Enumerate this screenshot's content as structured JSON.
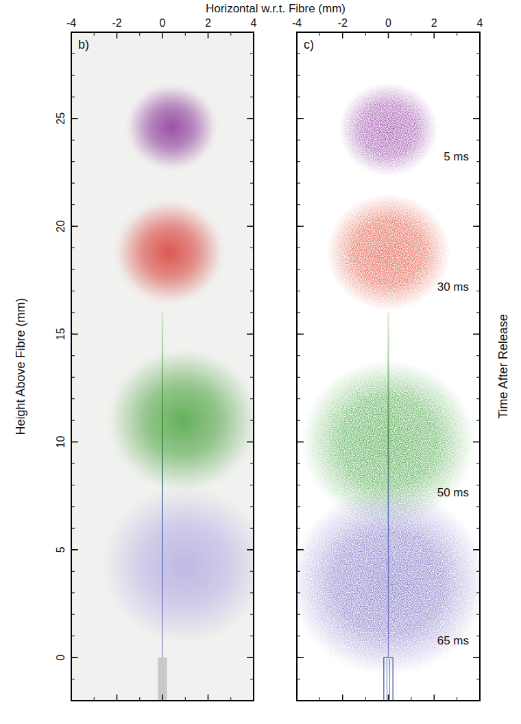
{
  "chart_data": [
    {
      "type": "scatter",
      "label": "b)",
      "marker": "blur",
      "xlabel": "Horizontal w.r.t. Fibre (mm)",
      "ylabel": "Height Above Fibre (mm)",
      "xlim": [
        -4,
        4
      ],
      "xticks": [
        -4,
        -2,
        0,
        2,
        4
      ],
      "ylim": [
        -2,
        29
      ],
      "yticks": [
        0,
        5,
        10,
        15,
        20,
        25
      ],
      "series": [
        {
          "color": "#8e3f9e",
          "x": [
            0.4
          ],
          "values": [
            24.6
          ],
          "sizes": [
            1.5
          ]
        },
        {
          "color": "#d9463f",
          "x": [
            0.3
          ],
          "values": [
            18.8
          ],
          "sizes": [
            1.8
          ]
        },
        {
          "color": "#55a84a",
          "x": [
            0.9
          ],
          "values": [
            11
          ],
          "sizes": [
            2.5
          ]
        },
        {
          "color": "#b9b2e3",
          "x": [
            1
          ],
          "values": [
            4.3
          ],
          "sizes": [
            2.8
          ]
        }
      ],
      "guide": {
        "x": 0,
        "values": [
          16,
          0
        ]
      },
      "fibre": {
        "x": 0,
        "width": 0.4,
        "top": 0
      }
    },
    {
      "type": "scatter",
      "label": "c)",
      "marker": "speckle",
      "tick_labels": "x",
      "y2label": "Time After Release",
      "xlim": [
        -4,
        4
      ],
      "xticks": [
        -4,
        -2,
        0,
        2,
        4
      ],
      "ylim": [
        -2,
        29
      ],
      "yticks": [
        0,
        5,
        10,
        15,
        20,
        25
      ],
      "series": [
        {
          "name": "5 ms",
          "color": "#9a4aa8",
          "x": [
            0
          ],
          "values": [
            24.5
          ],
          "sizes": [
            1.6
          ]
        },
        {
          "name": "30 ms",
          "color": "#e0533f",
          "x": [
            0
          ],
          "values": [
            18.8
          ],
          "sizes": [
            2
          ]
        },
        {
          "name": "50 ms",
          "color": "#4aa646",
          "x": [
            0
          ],
          "values": [
            10
          ],
          "sizes": [
            2.8
          ]
        },
        {
          "name": "65 ms",
          "color": "#7d72c4",
          "x": [
            0
          ],
          "values": [
            3.5
          ],
          "sizes": [
            3.2
          ]
        }
      ],
      "guide": {
        "x": 0,
        "values": [
          16,
          0
        ]
      },
      "fibre": {
        "x": 0,
        "width": 0.4,
        "top": 0
      }
    }
  ]
}
